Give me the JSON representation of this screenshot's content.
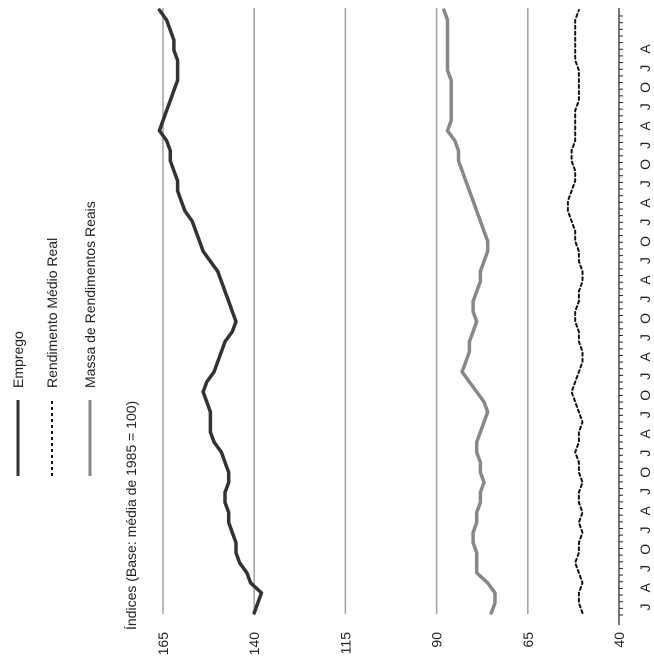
{
  "chart_data": {
    "type": "line",
    "title": "",
    "ylabel": "Índices (Base: média de 1985 = 100)",
    "xlabel": "",
    "ylim": [
      40,
      165
    ],
    "yticks": [
      165,
      140,
      115,
      90,
      65,
      40
    ],
    "grid": true,
    "legend_position": "top-left",
    "x_tick_labels": [
      "J",
      "A",
      "J",
      "O",
      "J",
      "A",
      "J",
      "O",
      "J",
      "A",
      "J",
      "O",
      "J",
      "A",
      "J",
      "O",
      "J",
      "A",
      "J",
      "O",
      "J",
      "A",
      "J",
      "O",
      "J",
      "A",
      "J",
      "O",
      "J",
      "A"
    ],
    "series": [
      {
        "name": "Emprego",
        "color": "#333333",
        "style": "solid",
        "values": [
          140,
          139,
          138,
          141,
          142,
          144,
          145,
          145,
          146,
          147,
          147,
          148,
          148,
          147,
          147,
          148,
          149,
          151,
          152,
          152,
          152,
          153,
          154,
          153,
          151,
          150,
          149,
          148,
          146,
          145,
          146,
          147,
          148,
          149,
          150,
          152,
          154,
          155,
          156,
          157,
          159,
          160,
          161,
          161,
          162,
          163,
          163,
          164,
          166,
          165,
          164,
          163,
          162,
          161,
          161,
          161,
          162,
          162,
          163,
          164,
          166
        ]
      },
      {
        "name": "Rendimento Médio Real",
        "color": "#111111",
        "style": "dashed",
        "values": [
          50,
          51,
          51,
          50,
          51,
          52,
          51,
          51,
          50,
          51,
          50,
          51,
          51,
          50,
          51,
          51,
          52,
          51,
          51,
          50,
          51,
          52,
          53,
          52,
          51,
          50,
          50,
          51,
          51,
          52,
          52,
          51,
          51,
          50,
          50,
          51,
          51,
          52,
          52,
          53,
          54,
          54,
          53,
          52,
          52,
          53,
          53,
          52,
          52,
          52,
          52,
          51,
          51,
          51,
          51,
          52,
          52,
          52,
          52,
          52,
          51
        ]
      },
      {
        "name": "Massa de Rendimentos Reais",
        "color": "#888888",
        "style": "solid",
        "values": [
          75,
          74,
          74,
          76,
          79,
          79,
          79,
          80,
          80,
          79,
          79,
          78,
          78,
          77,
          78,
          78,
          79,
          79,
          78,
          77,
          76,
          77,
          79,
          81,
          83,
          82,
          81,
          81,
          80,
          79,
          80,
          80,
          79,
          78,
          78,
          77,
          76,
          76,
          77,
          78,
          79,
          80,
          81,
          82,
          83,
          84,
          84,
          85,
          87,
          86,
          86,
          86,
          86,
          86,
          87,
          87,
          87,
          87,
          87,
          87,
          88
        ]
      }
    ]
  }
}
